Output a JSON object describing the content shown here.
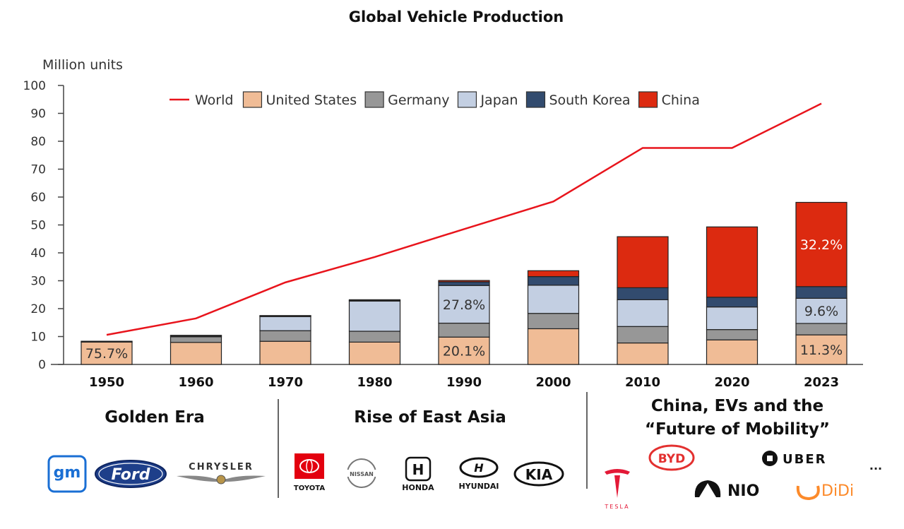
{
  "chart_data": {
    "type": "bar",
    "stacked": true,
    "title": "Global Vehicle Production",
    "ylabel": "Million units",
    "ylim": [
      0,
      100
    ],
    "yticks": [
      0,
      10,
      20,
      30,
      40,
      50,
      60,
      70,
      80,
      90,
      100
    ],
    "grid": false,
    "legend_position": "top",
    "categories": [
      "1950",
      "1960",
      "1970",
      "1980",
      "1990",
      "2000",
      "2010",
      "2020",
      "2023"
    ],
    "series": [
      {
        "name": "United States",
        "color": "#F0BC96",
        "values": [
          8.0,
          7.9,
          8.3,
          8.0,
          9.8,
          12.8,
          7.7,
          8.8,
          10.6
        ]
      },
      {
        "name": "Germany",
        "color": "#979797",
        "values": [
          0.3,
          2.0,
          3.8,
          3.9,
          5.0,
          5.5,
          5.9,
          3.7,
          4.1
        ]
      },
      {
        "name": "Japan",
        "color": "#C3CFE2",
        "values": [
          0.03,
          0.5,
          5.3,
          11.0,
          13.5,
          10.1,
          9.6,
          8.1,
          9.0
        ]
      },
      {
        "name": "South Korea",
        "color": "#324B6E",
        "values": [
          0,
          0,
          0.03,
          0.1,
          1.3,
          3.1,
          4.3,
          3.5,
          4.2
        ]
      },
      {
        "name": "China",
        "color": "#DC2A10",
        "values": [
          0,
          0.02,
          0.1,
          0.2,
          0.5,
          2.1,
          18.3,
          25.2,
          30.2
        ]
      }
    ],
    "line": {
      "name": "World",
      "color": "#E8141C",
      "values": [
        10.6,
        16.5,
        29.4,
        38.5,
        48.5,
        58.4,
        77.6,
        77.6,
        93.5
      ]
    },
    "annotations": [
      {
        "category": "1950",
        "series": "United States",
        "text": "75.7%"
      },
      {
        "category": "1990",
        "series": "United States",
        "text": "20.1%"
      },
      {
        "category": "1990",
        "series": "Japan",
        "text": "27.8%"
      },
      {
        "category": "2023",
        "series": "United States",
        "text": "11.3%"
      },
      {
        "category": "2023",
        "series": "Japan",
        "text": "9.6%"
      },
      {
        "category": "2023",
        "series": "China",
        "text": "32.2%"
      }
    ]
  },
  "eras": [
    {
      "title": "Golden Era",
      "logos": [
        "gm",
        "Ford",
        "CHRYSLER"
      ]
    },
    {
      "title": "Rise of East Asia",
      "logos": [
        "TOYOTA",
        "NISSAN",
        "HONDA",
        "HYUNDAI",
        "KIA"
      ]
    },
    {
      "title_line1": "China, EVs and the",
      "title_line2": "“Future of Mobility”",
      "logos": [
        "TESLA",
        "BYD",
        "UBER",
        "NIO",
        "DiDi"
      ],
      "more": "..."
    }
  ]
}
